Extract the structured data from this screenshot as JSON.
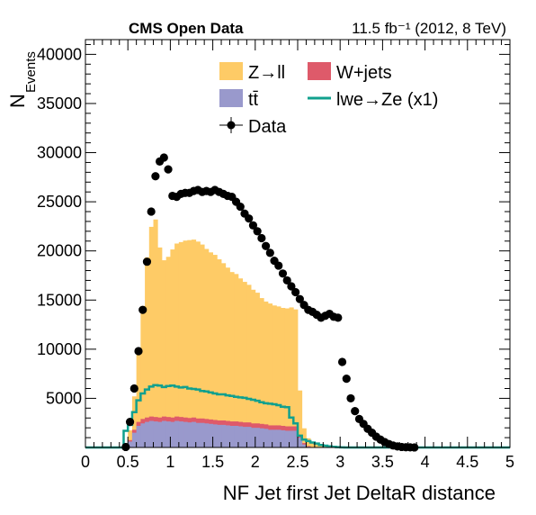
{
  "chart_data": {
    "type": "histogram",
    "title": "CMS Open Data",
    "lumi_label": "11.5 fb⁻¹ (2012, 8 TeV)",
    "xlabel": "NF Jet first Jet DeltaR distance",
    "ylabel": "N",
    "ylabel_sub": "Events",
    "xlim": [
      0,
      5
    ],
    "ylim": [
      0,
      41500
    ],
    "x_ticks": [
      "0",
      "0.5",
      "1",
      "1.5",
      "2",
      "2.5",
      "3",
      "3.5",
      "4",
      "4.5",
      "5"
    ],
    "y_ticks": [
      "5000",
      "10000",
      "15000",
      "20000",
      "25000",
      "30000",
      "35000",
      "40000"
    ],
    "bin_width": 0.05,
    "bins_start": 0.45,
    "series": [
      {
        "name": "tt̄",
        "color": "#9999cc",
        "values": [
          0,
          600,
          1500,
          2200,
          2450,
          2600,
          2700,
          2650,
          2600,
          2700,
          2650,
          2600,
          2700,
          2650,
          2600,
          2550,
          2600,
          2500,
          2500,
          2450,
          2400,
          2350,
          2300,
          2300,
          2250,
          2200,
          2200,
          2150,
          2100,
          2100,
          2000,
          2000,
          1950,
          1900,
          1800,
          1800,
          1800,
          1750,
          1700,
          1700,
          1700,
          1000,
          300,
          80,
          20,
          5,
          0,
          0,
          0,
          0,
          0,
          0,
          0,
          0,
          0,
          0,
          0,
          0,
          0,
          0,
          0,
          0,
          0,
          0,
          0,
          0,
          0,
          0,
          0,
          0,
          0,
          0,
          0,
          0,
          0
        ]
      },
      {
        "name": "W+jets",
        "color": "#de5a6a",
        "values": [
          0,
          150,
          300,
          400,
          450,
          450,
          450,
          450,
          450,
          450,
          450,
          450,
          450,
          450,
          450,
          450,
          450,
          450,
          450,
          450,
          450,
          450,
          450,
          450,
          450,
          450,
          450,
          450,
          450,
          450,
          450,
          450,
          450,
          450,
          450,
          450,
          450,
          450,
          450,
          450,
          450,
          300,
          150,
          60,
          20,
          5,
          0,
          0,
          0,
          0,
          0,
          0,
          0,
          0,
          0,
          0,
          0,
          0,
          0,
          0,
          0,
          0,
          0,
          0,
          0,
          0,
          0,
          0,
          0,
          0,
          0,
          0,
          0,
          0,
          0
        ]
      },
      {
        "name": "Z→ll",
        "color": "#fecb66",
        "values": [
          0,
          1000,
          3400,
          7000,
          11500,
          16300,
          19300,
          20100,
          17300,
          15900,
          16300,
          17100,
          17600,
          17800,
          18000,
          18100,
          18100,
          18000,
          17700,
          17300,
          17000,
          16800,
          16400,
          16000,
          15600,
          15200,
          15000,
          14600,
          14300,
          14000,
          13600,
          13300,
          12800,
          12500,
          12400,
          12200,
          12100,
          12000,
          12000,
          12100,
          11900,
          4500,
          1500,
          800,
          500,
          300,
          150,
          80,
          40,
          20,
          10,
          0,
          0,
          0,
          0,
          0,
          0,
          0,
          0,
          0,
          0,
          0,
          0,
          0,
          0,
          0,
          0,
          0,
          0,
          0,
          0,
          0,
          0,
          0,
          0
        ]
      }
    ],
    "signal": {
      "name": "lwe→Ze (x1)",
      "color": "#11a08e",
      "values": [
        1700,
        2300,
        3600,
        4800,
        5500,
        5900,
        6200,
        6350,
        6300,
        6150,
        6250,
        6300,
        6200,
        6100,
        6150,
        6000,
        5950,
        5900,
        5750,
        5700,
        5600,
        5500,
        5400,
        5400,
        5300,
        5250,
        5150,
        5100,
        5050,
        4950,
        4850,
        4750,
        4600,
        4500,
        4450,
        4400,
        4300,
        4150,
        4100,
        3050,
        2450,
        1200,
        800,
        650,
        500,
        400,
        250,
        180,
        110,
        70,
        30,
        10,
        0,
        0,
        0,
        0,
        0,
        0,
        0,
        0,
        0,
        0,
        0,
        0,
        0,
        0,
        0,
        0,
        0,
        0,
        0,
        0,
        0,
        0,
        0
      ]
    },
    "data_points": {
      "name": "Data",
      "x": [
        0.475,
        0.525,
        0.575,
        0.625,
        0.675,
        0.725,
        0.775,
        0.825,
        0.875,
        0.925,
        0.975,
        1.025,
        1.075,
        1.125,
        1.175,
        1.225,
        1.275,
        1.325,
        1.375,
        1.425,
        1.475,
        1.525,
        1.575,
        1.625,
        1.675,
        1.725,
        1.775,
        1.825,
        1.875,
        1.925,
        1.975,
        2.025,
        2.075,
        2.125,
        2.175,
        2.225,
        2.275,
        2.325,
        2.375,
        2.425,
        2.475,
        2.525,
        2.575,
        2.625,
        2.675,
        2.725,
        2.775,
        2.825,
        2.875,
        2.925,
        2.975,
        3.025,
        3.075,
        3.125,
        3.175,
        3.225,
        3.275,
        3.325,
        3.375,
        3.425,
        3.475,
        3.525,
        3.575,
        3.625,
        3.675,
        3.725,
        3.775,
        3.825,
        3.875,
        3.925,
        3.975,
        4.025,
        4.075
      ],
      "y": [
        50,
        2600,
        6000,
        9800,
        14000,
        18900,
        24000,
        27600,
        29100,
        29500,
        28300,
        25600,
        25500,
        25800,
        25900,
        25900,
        26100,
        26200,
        26000,
        26100,
        26000,
        26200,
        26000,
        25800,
        25600,
        25500,
        25000,
        24500,
        23800,
        23300,
        22600,
        22000,
        21300,
        20500,
        19800,
        19000,
        18500,
        17700,
        17000,
        16400,
        15800,
        15100,
        14500,
        14000,
        13800,
        13500,
        13200,
        13400,
        13600,
        13300,
        13200,
        8700,
        7000,
        5000,
        3700,
        2900,
        2400,
        1900,
        1500,
        1100,
        800,
        550,
        350,
        200,
        100,
        50,
        20,
        10,
        5,
        0,
        0,
        0,
        0
      ]
    },
    "legend": {
      "placement": "top-center",
      "entries": [
        "Z→ll",
        "W+jets",
        "tt̄",
        "lwe→Ze (x1)",
        "Data"
      ]
    },
    "grid": false
  }
}
